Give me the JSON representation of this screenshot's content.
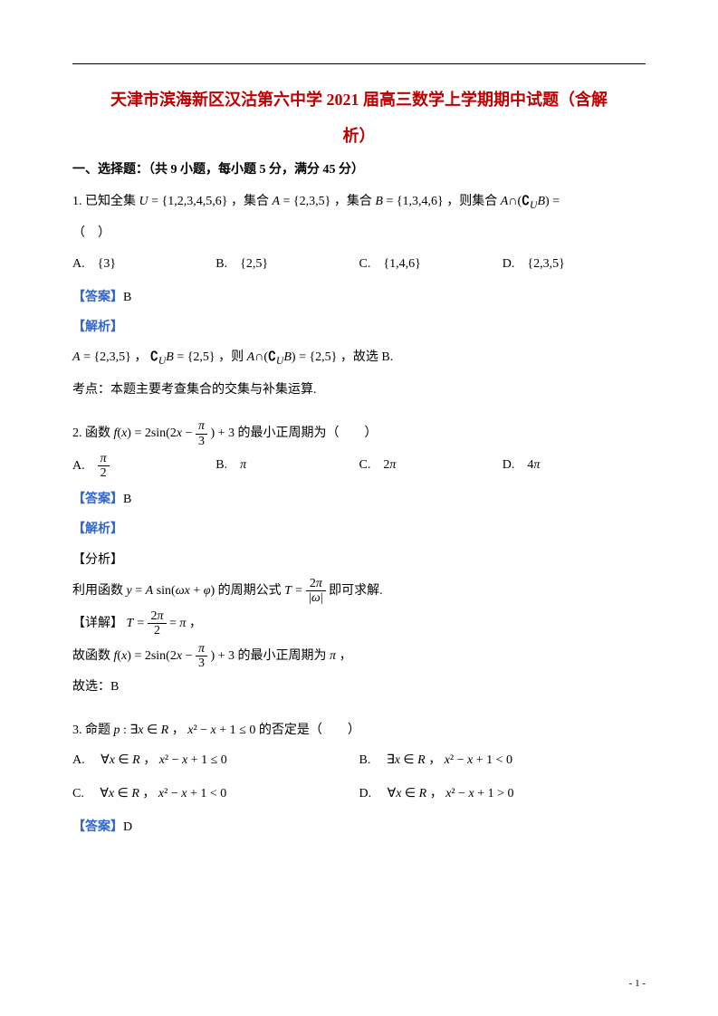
{
  "colors": {
    "title": "#c00000",
    "answer_label": "#3366cc",
    "text": "#000000",
    "background": "#ffffff",
    "rule": "#000000"
  },
  "typography": {
    "body_font": "SimSun",
    "math_font": "Times New Roman",
    "body_size_pt": 10.5,
    "title_size_pt": 14,
    "line_height": 2.1
  },
  "title_line1": "天津市滨海新区汉沽第六中学 2021 届高三数学上学期期中试题（含解",
  "title_line2": "析）",
  "section1": "一、选择题：（共 9 小题，每小题 5 分，满分 45 分）",
  "q1": {
    "stem_pre": "1. 已知全集 ",
    "U": "U = {1,2,3,4,5,6}",
    "mid1": "，集合 ",
    "A": "A = {2,3,5}",
    "mid2": "，集合 ",
    "B": "B = {1,3,4,6}",
    "mid3": "，则集合 ",
    "expr": "A∩(∁_U B) =",
    "paren": "（　）",
    "optA_lab": "A.　",
    "optA": "{3}",
    "optB_lab": "B.　",
    "optB": "{2,5}",
    "optC_lab": "C.　",
    "optC": "{1,4,6}",
    "optD_lab": "D.　",
    "optD": "{2,3,5}",
    "ans_label": "【答案】",
    "ans": "B",
    "jiexi": "【解析】",
    "sol_A": "A = {2,3,5}",
    "sol_mid1": "，",
    "sol_CB": "∁_U B = {2,5}",
    "sol_mid2": "，则 ",
    "sol_res": "A∩(∁_U B) = {2,5}",
    "sol_end": "，故选 B.",
    "kaodian": "考点：本题主要考查集合的交集与补集运算."
  },
  "q2": {
    "stem_pre": "2. 函数 ",
    "fx_pre": "f(x) = 2sin(2x − ",
    "frac_num": "π",
    "frac_den": "3",
    "fx_post": ") + 3",
    "stem_post": " 的最小正周期为（　　）",
    "optA_lab": "A.　",
    "optA_num": "π",
    "optA_den": "2",
    "optB_lab": "B.　",
    "optB": "π",
    "optC_lab": "C.　",
    "optC": "2π",
    "optD_lab": "D.　",
    "optD": "4π",
    "ans_label": "【答案】",
    "ans": "B",
    "jiexi": "【解析】",
    "fenxi": "【分析】",
    "fx_line_pre": "利用函数 ",
    "y_expr": "y = A sin(ωx + φ)",
    "fx_line_mid": " 的周期公式 ",
    "T_eq": "T =",
    "T_num": "2π",
    "T_den": "|ω|",
    "fx_line_post": " 即可求解.",
    "detail_label": "【详解】",
    "detail_T": "T =",
    "detail_num": "2π",
    "detail_den": "2",
    "detail_eq": "= π",
    "detail_comma": "，",
    "so_pre": "故函数 ",
    "so_fx_pre": "f(x) = 2sin(2x − ",
    "so_num": "π",
    "so_den": "3",
    "so_fx_post": ") + 3",
    "so_post": " 的最小正周期为 ",
    "so_val": "π",
    "so_comma": "，",
    "so_choose": "故选：B"
  },
  "q3": {
    "stem_pre": "3. 命题 ",
    "p": "p : ∃x ∈ R",
    "stem_mid": "， ",
    "ineq": "x² − x + 1 ≤ 0",
    "stem_post": " 的否定是（　　）",
    "optA_lab": "A.　",
    "optA_q": "∀x ∈ R",
    "optA_sep": " ， ",
    "optA_e": "x² − x + 1 ≤ 0",
    "optB_lab": "B.　",
    "optB_q": "∃x ∈ R",
    "optB_sep": "， ",
    "optB_e": "x² − x + 1 < 0",
    "optC_lab": "C.　",
    "optC_q": "∀x ∈ R",
    "optC_sep": "， ",
    "optC_e": "x² − x + 1 < 0",
    "optD_lab": "D.　",
    "optD_q": "∀x ∈ R",
    "optD_sep": "， ",
    "optD_e": "x² − x + 1 > 0",
    "ans_label": "【答案】",
    "ans": "D"
  },
  "page_num": "- 1 -"
}
